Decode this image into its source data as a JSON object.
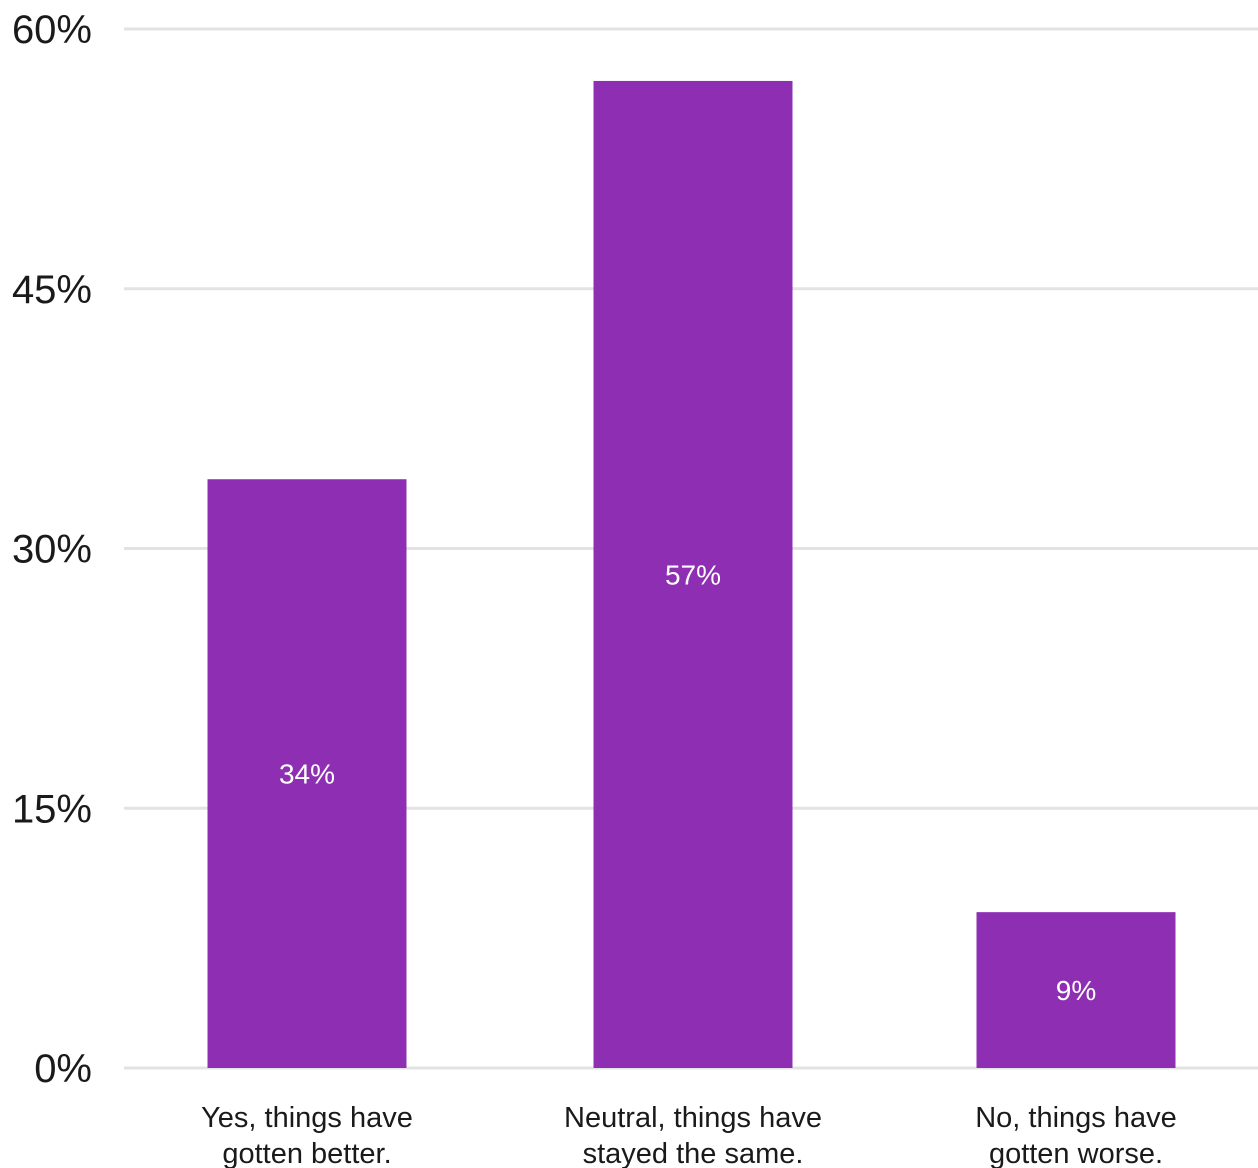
{
  "chart_data": {
    "type": "bar",
    "categories": [
      [
        "Yes, things have",
        "gotten better."
      ],
      [
        "Neutral, things have",
        "stayed the same."
      ],
      [
        "No, things have",
        "gotten worse."
      ]
    ],
    "values": [
      34,
      57,
      9
    ],
    "data_labels": [
      "34%",
      "57%",
      "9%"
    ],
    "y_ticks": [
      0,
      15,
      30,
      45,
      60
    ],
    "y_tick_labels": [
      "0%",
      "15%",
      "30%",
      "45%",
      "60%"
    ],
    "ylim": [
      0,
      60
    ],
    "grid": true,
    "bar_color": "#8e2fb3",
    "title": "",
    "xlabel": "",
    "ylabel": ""
  }
}
